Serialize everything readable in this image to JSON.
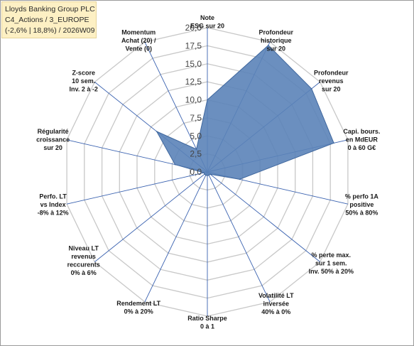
{
  "title": {
    "line1": "Lloyds Banking Group PLC",
    "line2": "C4_Actions / 3_EUROPE",
    "line3": "(-2,6% | 18,8%) / 2026W09"
  },
  "chart_data": {
    "type": "radar",
    "range": [
      0,
      20
    ],
    "ticks": [
      "0,0",
      "2,5",
      "5,0",
      "7,5",
      "10,0",
      "12,5",
      "15,0",
      "17,5",
      "20,0"
    ],
    "axes": [
      [
        "Note",
        "ESG sur 20"
      ],
      [
        "Profondeur",
        "historique",
        "sur 20"
      ],
      [
        "Profondeur",
        "revenus",
        "sur 20"
      ],
      [
        "Capi. bours.",
        "en MdEUR",
        "0 à 60 G€"
      ],
      [
        "% perfo 1A",
        "positive",
        "50% à 80%"
      ],
      [
        "% perte max.",
        "sur 1 sem.",
        "Inv. 50% à 20%"
      ],
      [
        "Volatilité LT",
        "inversée",
        "40% à 0%"
      ],
      [
        "Ratio Sharpe",
        "0 à 1"
      ],
      [
        "Rendement LT",
        "0% à 20%"
      ],
      [
        "Niveau LT",
        "revenus",
        "reccurents",
        "0% à 6%"
      ],
      [
        "Perfo. LT",
        "vs Index",
        "-8% à 12%"
      ],
      [
        "Régularité",
        "croissance",
        "sur 20"
      ],
      [
        "Z-score",
        "10 sem.",
        "Inv. 2 à -2"
      ],
      [
        "Momentum",
        "Achat (20) /",
        "Vente (0)"
      ]
    ],
    "values": [
      10.0,
      19.5,
      18.5,
      18.0,
      4.6,
      0.5,
      0.5,
      0.5,
      0.5,
      0.5,
      0.5,
      4.6,
      9.0,
      3.5
    ],
    "fill_color": "#5b83b8",
    "line_color": "#3f679e",
    "grid_color": "#c8c8c8",
    "axis_color": "#3a62b0"
  }
}
